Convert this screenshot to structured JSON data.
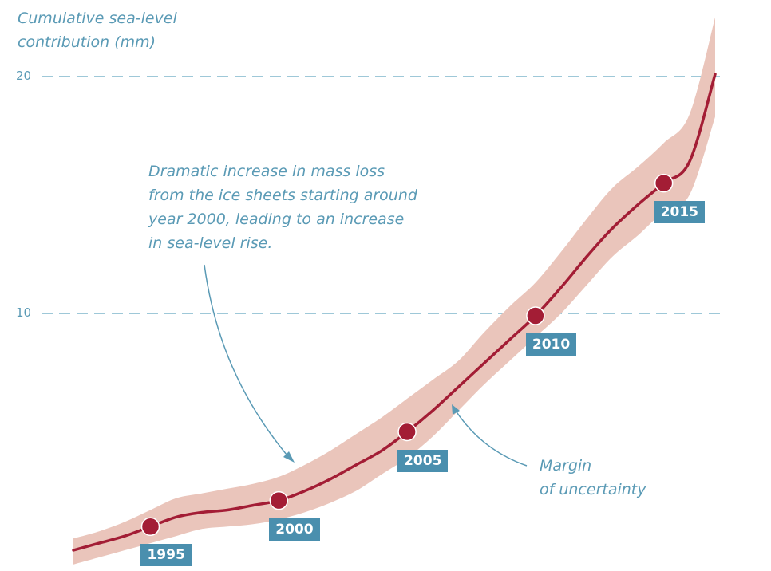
{
  "chart_data": {
    "type": "line",
    "ylabel": [
      "Cumulative sea-level",
      "contribution (mm)"
    ],
    "y_ticks": [
      10,
      20
    ],
    "ylim": [
      0,
      22
    ],
    "xlim": [
      1992,
      2017
    ],
    "grid": true,
    "series": [
      {
        "x": [
          1992,
          1993,
          1994,
          1995,
          1996,
          1997,
          1998,
          1999,
          2000,
          2001,
          2002,
          2003,
          2004,
          2005,
          2006,
          2007,
          2008,
          2009,
          2010,
          2011,
          2012,
          2013,
          2014,
          2015,
          2016,
          2017
        ],
        "y": [
          0.0,
          0.3,
          0.6,
          1.0,
          1.4,
          1.6,
          1.7,
          1.9,
          2.1,
          2.5,
          3.0,
          3.6,
          4.2,
          5.0,
          5.9,
          6.9,
          7.9,
          8.9,
          9.9,
          11.1,
          12.4,
          13.6,
          14.6,
          15.5,
          16.4,
          20.1
        ],
        "lower": [
          -0.6,
          -0.3,
          0.0,
          0.3,
          0.6,
          0.9,
          1.0,
          1.1,
          1.3,
          1.6,
          2.0,
          2.5,
          3.2,
          3.9,
          4.8,
          5.9,
          7.0,
          8.0,
          9.0,
          10.0,
          11.2,
          12.4,
          13.3,
          14.3,
          15.0,
          18.3
        ],
        "upper": [
          0.5,
          0.8,
          1.2,
          1.7,
          2.2,
          2.4,
          2.6,
          2.8,
          3.1,
          3.6,
          4.2,
          4.9,
          5.6,
          6.4,
          7.2,
          8.0,
          9.2,
          10.3,
          11.3,
          12.6,
          14.0,
          15.3,
          16.2,
          17.2,
          18.4,
          22.5
        ]
      }
    ],
    "highlighted_years": [
      {
        "year": "1995",
        "x": 1995,
        "y": 1.0
      },
      {
        "year": "2000",
        "x": 2000,
        "y": 2.1
      },
      {
        "year": "2005",
        "x": 2005,
        "y": 5.0
      },
      {
        "year": "2010",
        "x": 2010,
        "y": 9.9
      },
      {
        "year": "2015",
        "x": 2015,
        "y": 15.5
      }
    ],
    "annotations": [
      {
        "id": "mass-loss",
        "lines": [
          "Dramatic increase in mass loss",
          "from the ice sheets starting around",
          "year 2000, leading to an increase",
          "in sea-level rise."
        ]
      },
      {
        "id": "uncertainty",
        "lines": [
          "Margin",
          "of uncertainty"
        ]
      }
    ],
    "colors": {
      "line": "#a31d35",
      "band": "#eac5bb",
      "grid": "#7fb5cc",
      "label_bg": "#4a8fae",
      "text": "#5a9ab5"
    }
  }
}
